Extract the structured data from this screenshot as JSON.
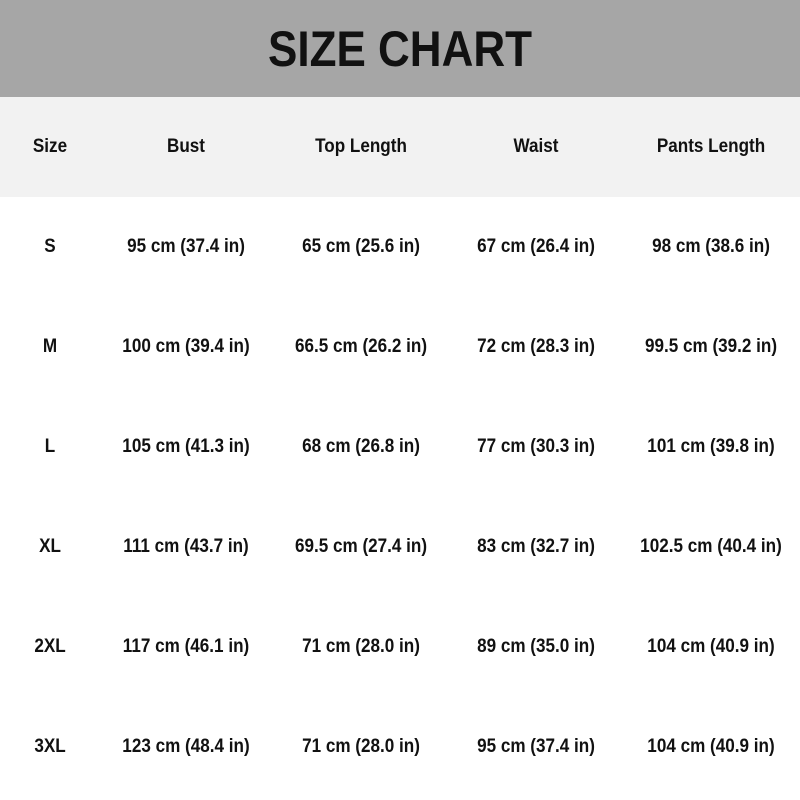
{
  "title": "SIZE CHART",
  "columns": [
    "Size",
    "Bust",
    "Top Length",
    "Waist",
    "Pants Length"
  ],
  "rows": [
    [
      "S",
      "95 cm (37.4 in)",
      "65 cm (25.6 in)",
      "67 cm (26.4 in)",
      "98 cm (38.6 in)"
    ],
    [
      "M",
      "100 cm (39.4 in)",
      "66.5 cm (26.2 in)",
      "72 cm (28.3 in)",
      "99.5 cm (39.2 in)"
    ],
    [
      "L",
      "105 cm (41.3 in)",
      "68 cm (26.8 in)",
      "77 cm (30.3 in)",
      "101 cm (39.8 in)"
    ],
    [
      "XL",
      "111 cm (43.7 in)",
      "69.5 cm (27.4 in)",
      "83 cm (32.7 in)",
      "102.5 cm (40.4 in)"
    ],
    [
      "2XL",
      "117 cm (46.1 in)",
      "71 cm (28.0 in)",
      "89 cm (35.0 in)",
      "104 cm (40.9 in)"
    ],
    [
      "3XL",
      "123 cm (48.4 in)",
      "71 cm (28.0 in)",
      "95 cm (37.4 in)",
      "104 cm (40.9 in)"
    ]
  ],
  "colors": {
    "banner": "#a6a6a6",
    "header_row": "#f2f2f2"
  }
}
